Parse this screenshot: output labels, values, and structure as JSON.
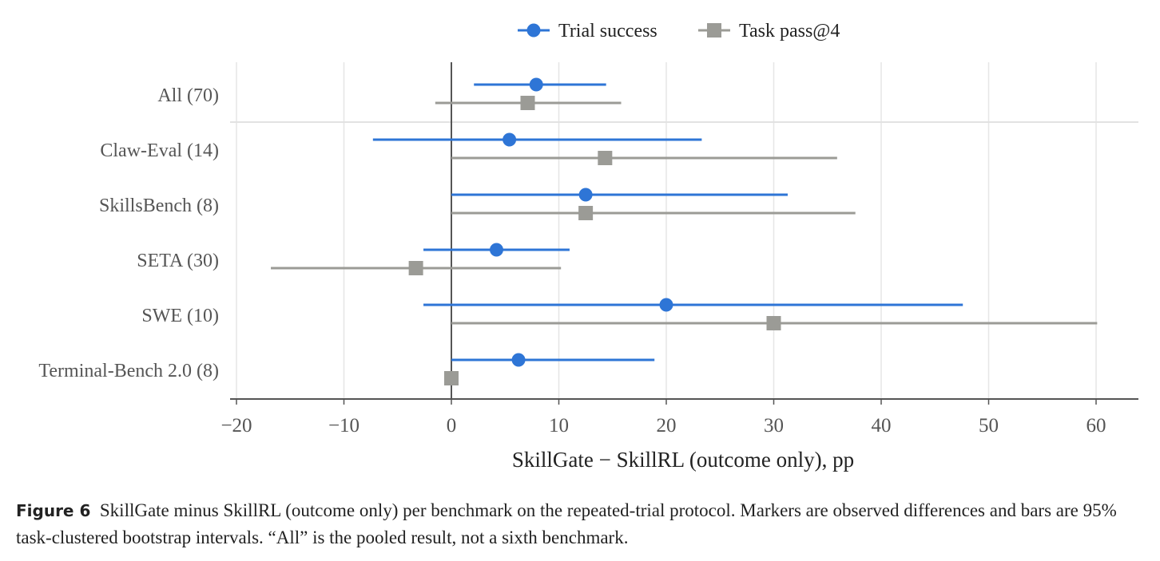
{
  "chart_data": {
    "type": "forest",
    "series": [
      {
        "name": "Trial success",
        "color": "#2e75d6",
        "marker": "circle"
      },
      {
        "name": "Task pass@4",
        "color": "#9b9b96",
        "marker": "square"
      }
    ],
    "categories": [
      "All (70)",
      "Claw-Eval (14)",
      "SkillsBench (8)",
      "SETA (30)",
      "SWE (10)",
      "Terminal-Bench 2.0 (8)"
    ],
    "points": [
      {
        "category": "All (70)",
        "trial_success": {
          "estimate": 7.9,
          "low": 2.1,
          "high": 14.4
        },
        "task_pass4": {
          "estimate": 7.1,
          "low": -1.5,
          "high": 15.8
        }
      },
      {
        "category": "Claw-Eval (14)",
        "trial_success": {
          "estimate": 5.4,
          "low": -7.3,
          "high": 23.3
        },
        "task_pass4": {
          "estimate": 14.3,
          "low": 0,
          "high": 35.9
        }
      },
      {
        "category": "SkillsBench (8)",
        "trial_success": {
          "estimate": 12.5,
          "low": 0,
          "high": 31.3
        },
        "task_pass4": {
          "estimate": 12.5,
          "low": 0,
          "high": 37.6
        }
      },
      {
        "category": "SETA (30)",
        "trial_success": {
          "estimate": 4.2,
          "low": -2.6,
          "high": 11.0
        },
        "task_pass4": {
          "estimate": -3.3,
          "low": -16.8,
          "high": 10.2
        }
      },
      {
        "category": "SWE (10)",
        "trial_success": {
          "estimate": 20.0,
          "low": -2.6,
          "high": 47.6
        },
        "task_pass4": {
          "estimate": 30.0,
          "low": 0,
          "high": 60.1
        }
      },
      {
        "category": "Terminal-Bench 2.0 (8)",
        "trial_success": {
          "estimate": 6.25,
          "low": 0,
          "high": 18.9
        },
        "task_pass4": {
          "estimate": 0,
          "low": 0,
          "high": 0
        }
      }
    ],
    "xlim": [
      -20.6,
      64
    ],
    "xticks": [
      -20,
      -10,
      0,
      10,
      20,
      30,
      40,
      50,
      60
    ],
    "xtick_labels": [
      "−20",
      "−10",
      "0",
      "10",
      "20",
      "30",
      "40",
      "50",
      "60"
    ],
    "xlabel": "SkillGate − SkillRL (outcome only), pp",
    "ylabel": "",
    "title": "",
    "legend_position": "top-center",
    "grid": true,
    "reference_line": 0,
    "separator_after": "All (70)"
  },
  "caption": {
    "label": "Figure 6",
    "text": "SkillGate minus SkillRL (outcome only) per benchmark on the repeated-trial protocol. Markers are observed differences and bars are 95% task-clustered bootstrap intervals. “All” is the pooled result, not a sixth benchmark."
  }
}
